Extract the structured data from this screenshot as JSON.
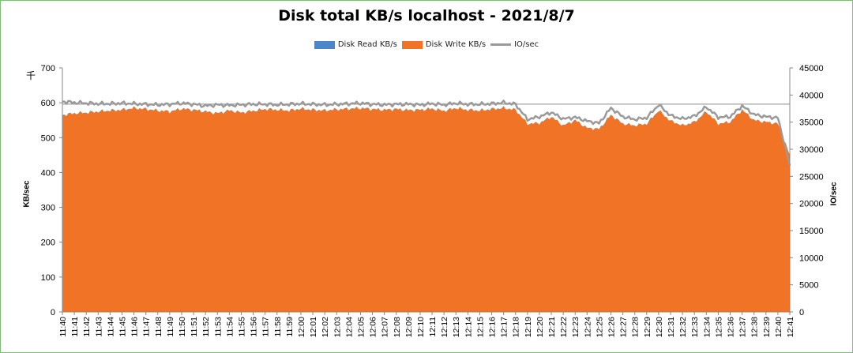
{
  "chart_data": {
    "type": "area",
    "title": "Disk total KB/s localhost - 2021/8/7",
    "ylabel": "KB/sec",
    "ylabel_unit_mark": "千",
    "y2label": "IO/sec",
    "ylim": [
      0,
      700
    ],
    "y2lim": [
      0,
      45000
    ],
    "yticks": [
      "0",
      "100",
      "200",
      "300",
      "400",
      "500",
      "600",
      "700"
    ],
    "y2ticks": [
      "0",
      "5000",
      "10000",
      "15000",
      "20000",
      "25000",
      "30000",
      "35000",
      "40000",
      "45000"
    ],
    "categories": [
      "11:40",
      "11:41",
      "11:42",
      "11:43",
      "11:44",
      "11:45",
      "11:46",
      "11:47",
      "11:48",
      "11:49",
      "11:50",
      "11:51",
      "11:52",
      "11:53",
      "11:54",
      "11:55",
      "11:56",
      "11:57",
      "11:58",
      "11:59",
      "12:00",
      "12:01",
      "12:02",
      "12:03",
      "12:04",
      "12:05",
      "12:06",
      "12:07",
      "12:08",
      "12:09",
      "12:10",
      "12:11",
      "12:12",
      "12:13",
      "12:14",
      "12:15",
      "12:16",
      "12:17",
      "12:18",
      "12:19",
      "12:20",
      "12:21",
      "12:22",
      "12:23",
      "12:24",
      "12:25",
      "12:26",
      "12:27",
      "12:28",
      "12:29",
      "12:30",
      "12:31",
      "12:32",
      "12:33",
      "12:34",
      "12:35",
      "12:36",
      "12:37",
      "12:38",
      "12:39",
      "12:40",
      "12:41"
    ],
    "reference_line": 596,
    "legend_position": "top",
    "series": [
      {
        "name": "Disk Read KB/s",
        "kind": "area",
        "color": "#4a86c8",
        "axis": "left",
        "values": [
          0,
          0,
          0,
          0,
          0,
          0,
          0,
          0,
          0,
          0,
          0,
          0,
          0,
          0,
          0,
          0,
          0,
          0,
          0,
          0,
          0,
          0,
          0,
          0,
          0,
          0,
          0,
          0,
          0,
          0,
          0,
          0,
          0,
          0,
          0,
          0,
          0,
          0,
          0,
          0,
          0,
          0,
          0,
          0,
          0,
          0,
          0,
          0,
          0,
          0,
          0,
          0,
          0,
          0,
          0,
          0,
          0,
          0,
          0,
          0,
          0,
          0
        ]
      },
      {
        "name": "Disk Write KB/s",
        "kind": "area",
        "color": "#f07326",
        "axis": "left",
        "values": [
          565,
          570,
          572,
          575,
          578,
          580,
          585,
          582,
          578,
          575,
          583,
          580,
          575,
          570,
          578,
          572,
          577,
          582,
          580,
          578,
          583,
          580,
          578,
          581,
          583,
          585,
          582,
          580,
          582,
          579,
          580,
          583,
          577,
          585,
          580,
          578,
          582,
          585,
          580,
          540,
          542,
          560,
          535,
          550,
          528,
          525,
          565,
          540,
          535,
          540,
          578,
          548,
          535,
          545,
          575,
          540,
          545,
          580,
          550,
          545,
          540,
          450
        ]
      },
      {
        "name": "IO/sec",
        "kind": "line",
        "color": "#9a9a9a",
        "axis": "right",
        "values": [
          38800,
          38600,
          38500,
          38400,
          38400,
          38500,
          38400,
          38300,
          38200,
          38300,
          38500,
          38300,
          38000,
          38200,
          38100,
          38200,
          38300,
          38300,
          38200,
          38300,
          38400,
          38300,
          38200,
          38300,
          38400,
          38500,
          38300,
          38200,
          38300,
          38300,
          38200,
          38400,
          38200,
          38500,
          38300,
          38300,
          38400,
          38600,
          38300,
          35500,
          36000,
          36800,
          35600,
          35900,
          35200,
          34800,
          37600,
          36000,
          35500,
          35800,
          38200,
          36200,
          35600,
          36100,
          37800,
          35900,
          36000,
          38000,
          36400,
          36000,
          35800,
          27000
        ]
      }
    ]
  }
}
